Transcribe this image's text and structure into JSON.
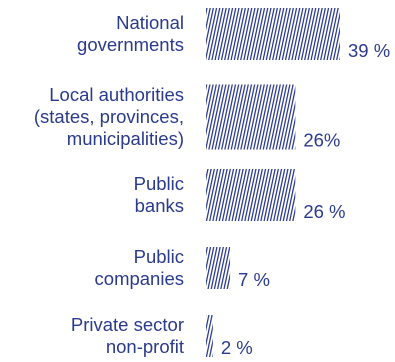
{
  "colors": {
    "text": "#2a3a8c",
    "bar_hatch": "#2a3a8c",
    "background": "#ffffff"
  },
  "chart_data": {
    "type": "bar",
    "orientation": "horizontal",
    "fill_style": "diagonal-hatch",
    "title": "",
    "xlabel": "",
    "ylabel": "",
    "grid": false,
    "legend": "none",
    "xlim": [
      0,
      39
    ],
    "categories": [
      [
        "National",
        "governments"
      ],
      [
        "Local authorities",
        "(states, provinces,",
        "municipalities)"
      ],
      [
        "Public",
        "banks"
      ],
      [
        "Public",
        "companies"
      ],
      [
        "Private sector",
        "non-profit"
      ]
    ],
    "values": [
      39,
      26,
      26,
      7,
      2
    ],
    "value_labels": [
      "39 %",
      "26%",
      "26 %",
      "7 %",
      "2 %"
    ]
  }
}
